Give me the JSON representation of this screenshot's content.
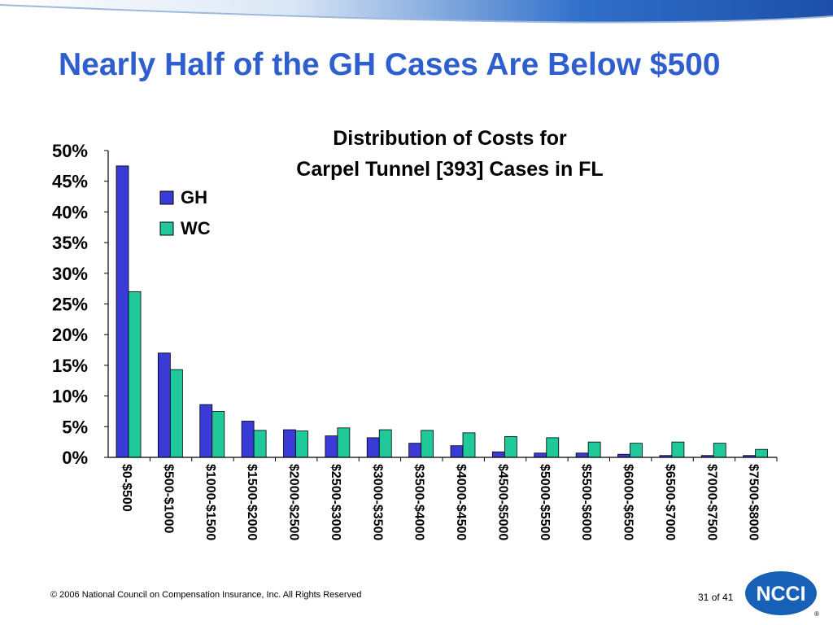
{
  "slide": {
    "title": "Nearly Half of the GH Cases Are Below $500",
    "footer": "© 2006 National Council on Compensation Insurance, Inc. All Rights Reserved",
    "page_number": "31",
    "page_of": "of 41",
    "logo_text": "NCCI",
    "logo_mark": "®"
  },
  "colors": {
    "title": "#2f5fcf",
    "gh": "#3a3ad6",
    "wc": "#1fc99a",
    "logo": "#1660b8"
  },
  "chart_data": {
    "type": "bar",
    "title_lines": [
      "Distribution of Costs for",
      "Carpel Tunnel [393] Cases in FL"
    ],
    "categories": [
      "$0-$500",
      "$500-$1000",
      "$1000-$1500",
      "$1500-$2000",
      "$2000-$2500",
      "$2500-$3000",
      "$3000-$3500",
      "$3500-$4000",
      "$4000-$4500",
      "$4500-$5000",
      "$5000-$5500",
      "$5500-$6000",
      "$6000-$6500",
      "$6500-$7000",
      "$7000-$7500",
      "$7500-$8000"
    ],
    "series": [
      {
        "name": "GH",
        "color": "#3a3ad6",
        "values": [
          47.5,
          17.0,
          8.6,
          5.9,
          4.5,
          3.5,
          3.2,
          2.3,
          1.9,
          0.9,
          0.7,
          0.7,
          0.5,
          0.3,
          0.3,
          0.3
        ]
      },
      {
        "name": "WC",
        "color": "#1fc99a",
        "values": [
          27.0,
          14.3,
          7.5,
          4.4,
          4.3,
          4.8,
          4.5,
          4.4,
          4.0,
          3.4,
          3.2,
          2.5,
          2.3,
          2.5,
          2.3,
          1.3
        ]
      }
    ],
    "y_ticks": [
      "0%",
      "5%",
      "10%",
      "15%",
      "20%",
      "25%",
      "30%",
      "35%",
      "40%",
      "45%",
      "50%"
    ],
    "ylim": [
      0,
      50
    ],
    "grid": false,
    "legend": "upper-left inside plot"
  }
}
